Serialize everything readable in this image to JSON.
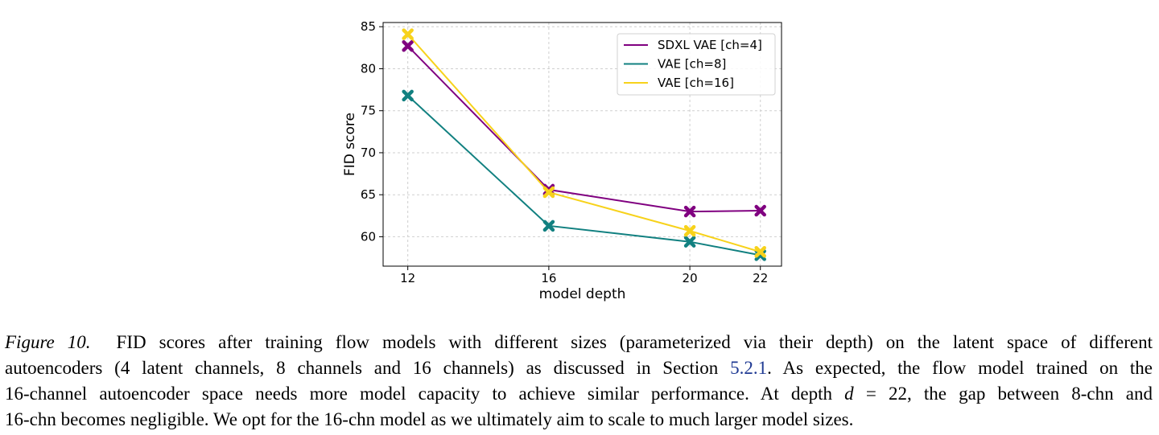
{
  "chart_data": {
    "type": "line",
    "x": [
      12,
      16,
      20,
      22
    ],
    "xlabel": "model depth",
    "ylabel": "FID score",
    "xticks": [
      "12",
      "16",
      "20",
      "22"
    ],
    "yticks": [
      "60",
      "65",
      "70",
      "75",
      "80",
      "85"
    ],
    "xlim": [
      11.3,
      22.6
    ],
    "ylim": [
      56.5,
      85.5
    ],
    "grid": true,
    "legend_position": "top-right",
    "marker": "x",
    "series": [
      {
        "name": "SDXL VAE [ch=4]",
        "color": "#800080",
        "values": [
          82.7,
          65.6,
          63.0,
          63.1
        ]
      },
      {
        "name": "VAE [ch=8]",
        "color": "#118080",
        "values": [
          76.8,
          61.3,
          59.4,
          57.8
        ]
      },
      {
        "name": "VAE [ch=16]",
        "color": "#f7d21b",
        "values": [
          84.1,
          65.3,
          60.7,
          58.2
        ]
      }
    ]
  },
  "caption": {
    "figure_label": "Figure 10.",
    "line1": "FID scores after training flow models with different sizes (parameterized via their depth) on the latent space of different",
    "line2_before_link": "autoencoders (4 latent channels, 8 channels and 16 channels) as discussed in Section",
    "section_link": "5.2.1",
    "line2_after_link": ". As expected, the flow model trained on the",
    "line3_before_math": "16-channel autoencoder space needs more model capacity to achieve similar performance. At depth",
    "math_var": "d",
    "line3_after_math": "= 22, the gap between 8-chn and",
    "line4": "16-chn becomes negligible. We opt for the 16-chn model as we ultimately aim to scale to much larger model sizes."
  }
}
